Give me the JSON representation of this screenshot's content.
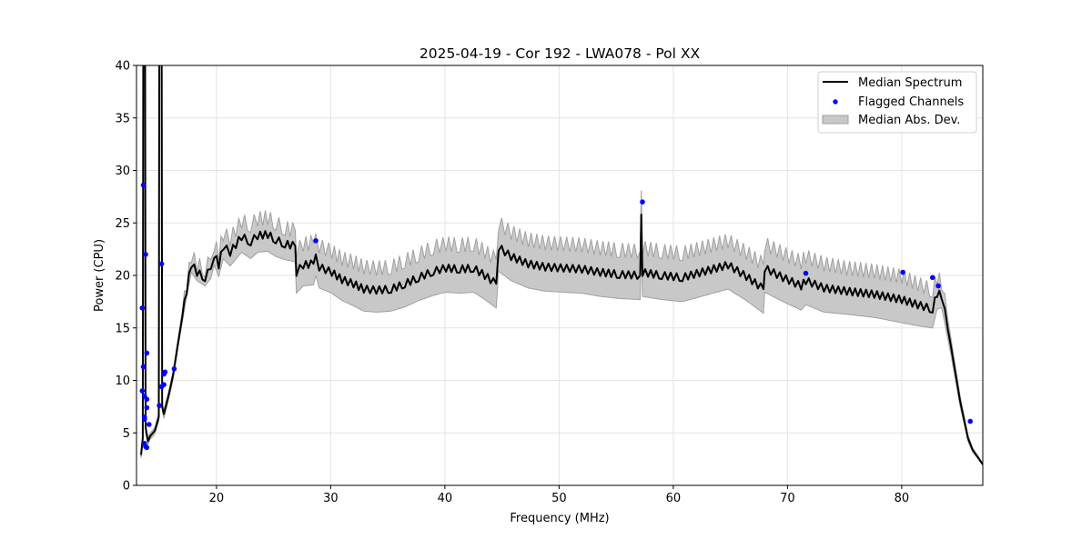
{
  "chart_data": {
    "type": "line",
    "title": "2025-04-19 - Cor 192 - LWA078 - Pol XX",
    "xlabel": "Frequency (MHz)",
    "ylabel": "Power (CPU)",
    "xlim": [
      13.0,
      87.1
    ],
    "ylim": [
      0,
      40
    ],
    "xticks": [
      20,
      30,
      40,
      50,
      60,
      70,
      80
    ],
    "yticks": [
      0,
      5,
      10,
      15,
      20,
      25,
      30,
      35,
      40
    ],
    "grid": true,
    "legend_position": "top-right",
    "legend": [
      "Median Spectrum",
      "Flagged Channels",
      "Median Abs. Dev."
    ],
    "colors": {
      "median": "#000000",
      "flagged": "#0000ff",
      "mad": "#c8c8c8"
    },
    "median_spectrum": [
      [
        13.4,
        2.9
      ],
      [
        13.55,
        4.5
      ],
      [
        13.6,
        45
      ],
      [
        13.75,
        45
      ],
      [
        13.8,
        5.5
      ],
      [
        14.0,
        4.2
      ],
      [
        14.2,
        4.7
      ],
      [
        14.6,
        5.2
      ],
      [
        14.95,
        6.5
      ],
      [
        15.0,
        45
      ],
      [
        15.2,
        45
      ],
      [
        15.25,
        7.5
      ],
      [
        15.4,
        6.8
      ],
      [
        15.8,
        8.5
      ],
      [
        16.2,
        10.5
      ],
      [
        16.6,
        13.3
      ],
      [
        17.0,
        16
      ],
      [
        17.4,
        18.6
      ],
      [
        17.8,
        21.1
      ],
      [
        18.3,
        20.3
      ],
      [
        19.0,
        19.8
      ],
      [
        19.5,
        20.6
      ],
      [
        19.8,
        22
      ],
      [
        20.2,
        21
      ],
      [
        20.6,
        22.8
      ],
      [
        21.2,
        22.2
      ],
      [
        22.2,
        23.7
      ],
      [
        23.0,
        23.2
      ],
      [
        23.6,
        23.8
      ],
      [
        24.5,
        23.9
      ],
      [
        25.2,
        23.4
      ],
      [
        26.0,
        23.0
      ],
      [
        26.9,
        22.8
      ],
      [
        27.0,
        20.3
      ],
      [
        27.6,
        21.0
      ],
      [
        28.5,
        21.1
      ],
      [
        28.7,
        22.0
      ],
      [
        29.0,
        20.8
      ],
      [
        30.1,
        20.3
      ],
      [
        31.0,
        19.6
      ],
      [
        32.0,
        19.2
      ],
      [
        32.9,
        18.7
      ],
      [
        34.0,
        18.6
      ],
      [
        35.3,
        18.7
      ],
      [
        36.5,
        19.2
      ],
      [
        37.7,
        19.8
      ],
      [
        39.0,
        20.4
      ],
      [
        40.1,
        20.7
      ],
      [
        41.3,
        20.6
      ],
      [
        42.5,
        20.7
      ],
      [
        43.5,
        20.0
      ],
      [
        44.5,
        19.2
      ],
      [
        44.7,
        22.7
      ],
      [
        45.8,
        21.8
      ],
      [
        47.3,
        21.1
      ],
      [
        48.8,
        20.8
      ],
      [
        50.4,
        20.7
      ],
      [
        52.0,
        20.6
      ],
      [
        53.6,
        20.3
      ],
      [
        55.3,
        20.1
      ],
      [
        57.1,
        20.0
      ],
      [
        57.2,
        25.8
      ],
      [
        57.3,
        20.3
      ],
      [
        59.0,
        20.0
      ],
      [
        60.8,
        19.8
      ],
      [
        62.8,
        20.4
      ],
      [
        64.8,
        21.0
      ],
      [
        66.4,
        19.9
      ],
      [
        67.9,
        18.7
      ],
      [
        68.0,
        20.7
      ],
      [
        69.6,
        19.8
      ],
      [
        71.2,
        19.0
      ],
      [
        71.6,
        19.5
      ],
      [
        73.2,
        18.8
      ],
      [
        75.2,
        18.5
      ],
      [
        77.6,
        18.2
      ],
      [
        80.0,
        17.7
      ],
      [
        81.4,
        17.2
      ],
      [
        82.7,
        16.8
      ],
      [
        83.1,
        18.3
      ],
      [
        83.5,
        18.1
      ],
      [
        84.3,
        13.3
      ],
      [
        85.1,
        8.1
      ],
      [
        85.8,
        4.5
      ],
      [
        86.2,
        3.4
      ],
      [
        87.1,
        2.0
      ]
    ],
    "mad": [
      0.3,
      0.5,
      0.5,
      0.5,
      0.5,
      0.3,
      0.3,
      0.3,
      0.4,
      0.4,
      0.4,
      0.4,
      0.4,
      0.4,
      0.4,
      0.4,
      0.5,
      0.6,
      0.8,
      0.8,
      0.8,
      0.9,
      1.0,
      1.1,
      1.2,
      1.3,
      1.5,
      1.6,
      1.6,
      1.6,
      1.6,
      1.5,
      1.5,
      2.0,
      2.0,
      2.0,
      2.0,
      2.0,
      2.0,
      2.0,
      2.1,
      2.1,
      2.1,
      2.1,
      2.2,
      2.2,
      2.3,
      2.3,
      2.3,
      2.3,
      2.3,
      2.3,
      2.3,
      2.3,
      2.3,
      2.3,
      2.3,
      2.3,
      2.3,
      2.3,
      2.3,
      2.3,
      2.3,
      2.3,
      2.3,
      2.3,
      2.3,
      2.3,
      2.3,
      2.3,
      2.3,
      2.3,
      2.3,
      2.3,
      2.2,
      2.2,
      2.2,
      2.0,
      1.8,
      1.5,
      1.2,
      0.8,
      0.5,
      0.3,
      0.2,
      0.1,
      0.1
    ],
    "flagged_channels": [
      [
        13.6,
        28.6
      ],
      [
        13.8,
        22.0
      ],
      [
        13.5,
        16.9
      ],
      [
        13.9,
        12.6
      ],
      [
        13.6,
        11.3
      ],
      [
        13.5,
        9.0
      ],
      [
        13.7,
        8.5
      ],
      [
        13.9,
        8.2
      ],
      [
        13.9,
        7.4
      ],
      [
        13.7,
        6.5
      ],
      [
        13.7,
        6.3
      ],
      [
        14.1,
        5.8
      ],
      [
        13.7,
        4.0
      ],
      [
        13.9,
        3.6
      ],
      [
        13.8,
        3.7
      ],
      [
        15.2,
        21.1
      ],
      [
        15.0,
        7.6
      ],
      [
        15.2,
        9.4
      ],
      [
        15.4,
        9.6
      ],
      [
        15.4,
        10.6
      ],
      [
        15.5,
        10.8
      ],
      [
        16.3,
        11.1
      ],
      [
        28.7,
        23.3
      ],
      [
        57.3,
        27.0
      ],
      [
        71.6,
        20.2
      ],
      [
        80.1,
        20.3
      ],
      [
        82.7,
        19.8
      ],
      [
        83.2,
        19.0
      ],
      [
        86.0,
        6.1
      ]
    ]
  }
}
